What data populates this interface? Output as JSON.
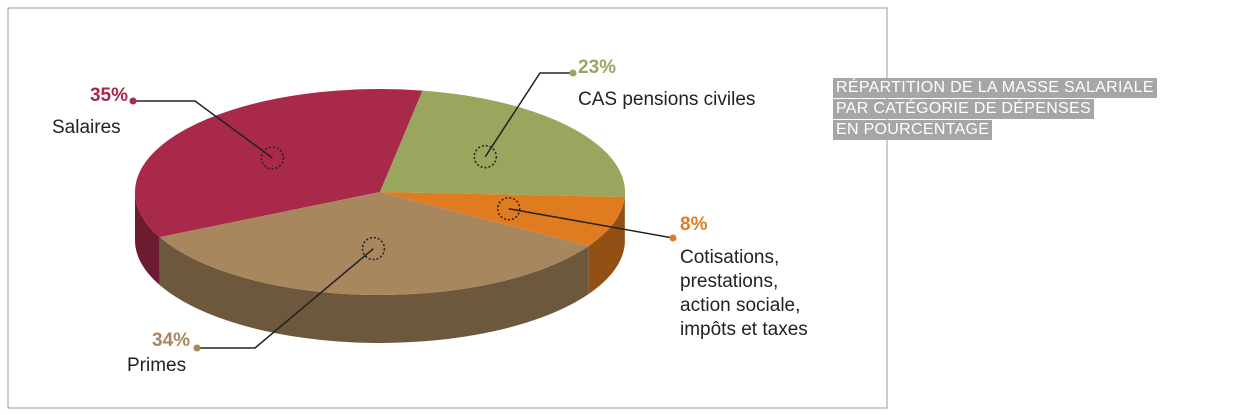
{
  "chart_data": {
    "type": "pie",
    "title": [
      "RÉPARTITION DE LA MASSE SALARIALE",
      "PAR CATÉGORIE DE DÉPENSES",
      "EN POURCENTAGE"
    ],
    "categories": [
      "Salaires",
      "CAS pensions civiles",
      "Cotisations, prestations, action sociale, impôts et taxes",
      "Primes"
    ],
    "values": [
      35,
      23,
      8,
      34
    ],
    "value_labels": [
      "35%",
      "23%",
      "8%",
      "34%"
    ],
    "colors": [
      "#a8294a",
      "#9aa55e",
      "#e07b20",
      "#a8875f"
    ]
  }
}
